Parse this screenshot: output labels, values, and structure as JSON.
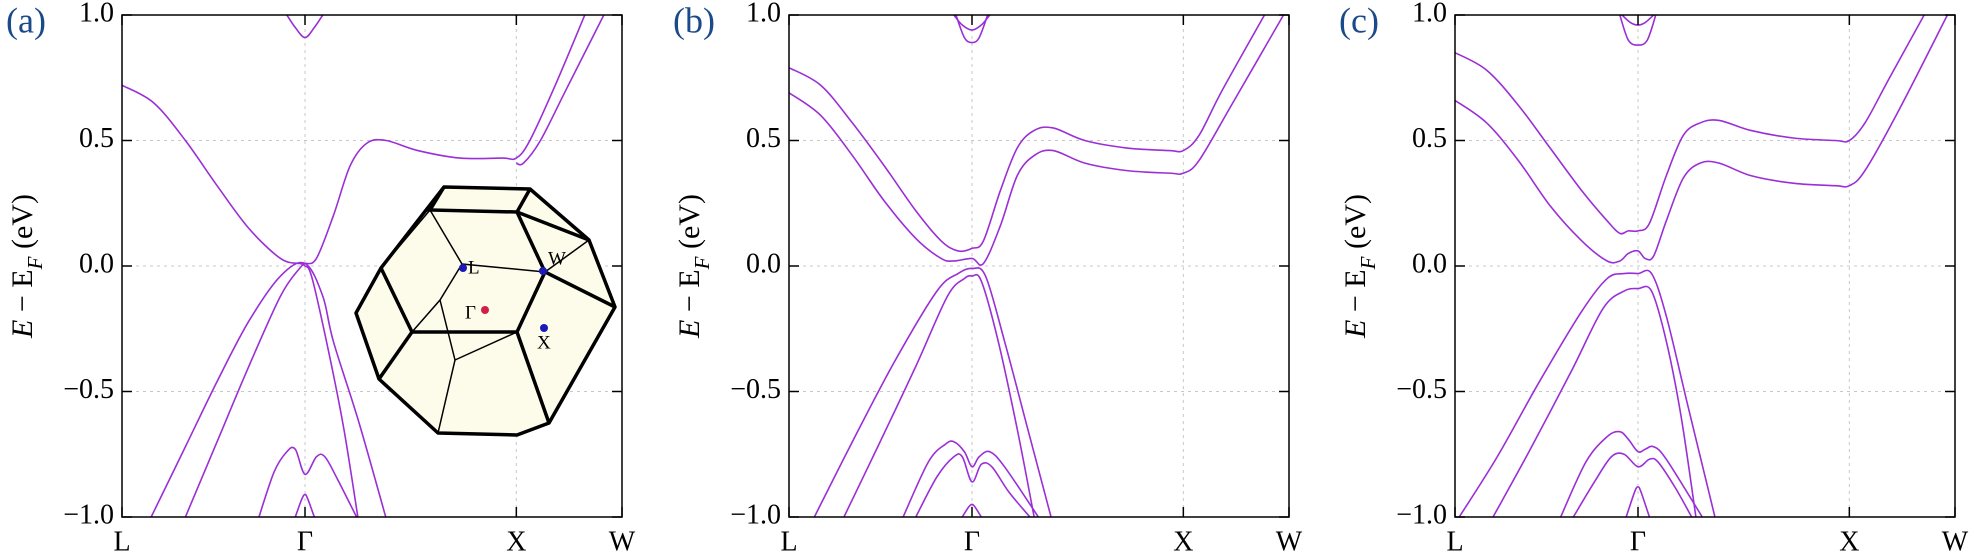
{
  "chart_data": [
    {
      "type": "line",
      "title": "(a)",
      "ylabel": [
        "E",
        " − E",
        "F",
        " (eV)"
      ],
      "xlim": [
        0,
        2.366
      ],
      "ylim": [
        -1,
        1
      ],
      "xticks": [
        {
          "value": 0,
          "label": "L"
        },
        {
          "value": 0.866,
          "label": "Γ"
        },
        {
          "value": 1.866,
          "label": "X"
        },
        {
          "value": 2.366,
          "label": "W"
        }
      ],
      "yticks": [
        {
          "value": -1,
          "label": "−1.0"
        },
        {
          "value": -0.5,
          "label": "−0.5"
        },
        {
          "value": 0,
          "label": "0.0"
        },
        {
          "value": 0.5,
          "label": "0.5"
        },
        {
          "value": 1,
          "label": "1.0"
        }
      ],
      "grid": true,
      "color": "#9a2fd6",
      "annotations": [
        "L",
        "W",
        "Γ",
        "X"
      ],
      "series": [
        {
          "x": [
            0,
            0.15,
            0.3,
            0.45,
            0.6,
            0.75,
            0.84,
            0.866,
            0.92,
            1.0,
            1.08,
            1.16,
            1.25,
            1.4,
            1.6,
            1.8,
            1.866,
            1.93,
            2.05,
            2.19
          ],
          "values": [
            0.72,
            0.65,
            0.5,
            0.32,
            0.15,
            0.03,
            0.01,
            0.01,
            0.03,
            0.2,
            0.4,
            0.49,
            0.5,
            0.46,
            0.43,
            0.43,
            0.43,
            0.5,
            0.72,
            1.0
          ]
        },
        {
          "x": [
            1.866,
            1.9,
            1.98,
            2.1,
            2.28
          ],
          "values": [
            0.41,
            0.41,
            0.5,
            0.7,
            1.0
          ]
        },
        {
          "x": [
            0.138,
            0.3,
            0.45,
            0.6,
            0.75,
            0.866,
            0.95,
            1.0,
            1.12,
            1.248
          ],
          "values": [
            -1.0,
            -0.72,
            -0.46,
            -0.22,
            -0.04,
            0.01,
            -0.12,
            -0.3,
            -0.62,
            -1.0
          ]
        },
        {
          "x": [
            0.3,
            0.45,
            0.6,
            0.75,
            0.84,
            0.866,
            0.9,
            0.98,
            1.05,
            1.116
          ],
          "values": [
            -1.0,
            -0.7,
            -0.4,
            -0.12,
            -0.01,
            0.0,
            -0.05,
            -0.35,
            -0.65,
            -1.0
          ]
        },
        {
          "x": [
            0.648,
            0.72,
            0.78,
            0.82,
            0.866,
            0.92,
            0.96,
            1.02,
            1.11
          ],
          "values": [
            -1.0,
            -0.82,
            -0.74,
            -0.73,
            -0.83,
            -0.76,
            -0.76,
            -0.85,
            -1.0
          ]
        },
        {
          "x": [
            0.82,
            0.85,
            0.866,
            0.88,
            0.91
          ],
          "values": [
            -1.0,
            -0.93,
            -0.91,
            -0.93,
            -1.0
          ]
        },
        {
          "x": [
            0.78,
            0.82,
            0.866,
            0.91,
            0.95
          ],
          "values": [
            1.0,
            0.95,
            0.91,
            0.95,
            1.0
          ]
        }
      ]
    },
    {
      "type": "line",
      "title": "(b)",
      "ylabel": [
        "E",
        " − E",
        "F",
        " (eV)"
      ],
      "xlim": [
        0,
        2.366
      ],
      "ylim": [
        -1,
        1
      ],
      "xticks": [
        {
          "value": 0,
          "label": "L"
        },
        {
          "value": 0.866,
          "label": "Γ"
        },
        {
          "value": 1.866,
          "label": "X"
        },
        {
          "value": 2.366,
          "label": "W"
        }
      ],
      "yticks": [
        {
          "value": -1,
          "label": "−1.0"
        },
        {
          "value": -0.5,
          "label": "−0.5"
        },
        {
          "value": 0,
          "label": "0.0"
        },
        {
          "value": 0.5,
          "label": "0.5"
        },
        {
          "value": 1,
          "label": "1.0"
        }
      ],
      "grid": true,
      "color": "#9a2fd6",
      "series": [
        {
          "x": [
            0,
            0.15,
            0.3,
            0.45,
            0.6,
            0.72,
            0.8,
            0.866,
            0.92,
            1.0,
            1.08,
            1.16,
            1.25,
            1.4,
            1.6,
            1.8,
            1.866,
            1.94,
            2.05,
            2.25
          ],
          "values": [
            0.79,
            0.72,
            0.57,
            0.4,
            0.22,
            0.1,
            0.06,
            0.07,
            0.1,
            0.3,
            0.47,
            0.54,
            0.55,
            0.5,
            0.47,
            0.46,
            0.46,
            0.52,
            0.7,
            1.0
          ]
        },
        {
          "x": [
            0,
            0.15,
            0.3,
            0.45,
            0.6,
            0.72,
            0.78,
            0.866,
            0.92,
            1.0,
            1.08,
            1.16,
            1.25,
            1.4,
            1.6,
            1.8,
            1.866,
            1.94,
            2.1,
            2.34
          ],
          "values": [
            0.69,
            0.6,
            0.44,
            0.26,
            0.11,
            0.03,
            0.02,
            0.03,
            0.01,
            0.16,
            0.36,
            0.44,
            0.46,
            0.41,
            0.38,
            0.37,
            0.37,
            0.42,
            0.65,
            1.0
          ]
        },
        {
          "x": [
            0.12,
            0.3,
            0.5,
            0.7,
            0.8,
            0.866,
            0.93,
            1.02,
            1.13,
            1.24
          ],
          "values": [
            -1.0,
            -0.7,
            -0.38,
            -0.1,
            -0.03,
            -0.01,
            -0.04,
            -0.3,
            -0.65,
            -1.0
          ]
        },
        {
          "x": [
            0.26,
            0.42,
            0.6,
            0.75,
            0.83,
            0.866,
            0.91,
            0.99,
            1.08,
            1.16
          ],
          "values": [
            -1.0,
            -0.72,
            -0.4,
            -0.12,
            -0.05,
            -0.04,
            -0.06,
            -0.3,
            -0.65,
            -1.0
          ]
        },
        {
          "x": [
            0.54,
            0.66,
            0.74,
            0.78,
            0.83,
            0.866,
            0.9,
            0.95,
            1.02,
            1.18
          ],
          "values": [
            -1.0,
            -0.78,
            -0.71,
            -0.7,
            -0.74,
            -0.8,
            -0.76,
            -0.74,
            -0.8,
            -1.0
          ]
        },
        {
          "x": [
            0.6,
            0.7,
            0.78,
            0.82,
            0.866,
            0.91,
            0.96,
            1.04,
            1.14
          ],
          "values": [
            -1.0,
            -0.84,
            -0.76,
            -0.76,
            -0.86,
            -0.79,
            -0.8,
            -0.9,
            -1.0
          ]
        },
        {
          "x": [
            0.82,
            0.85,
            0.866,
            0.88,
            0.91
          ],
          "values": [
            -1.0,
            -0.96,
            -0.95,
            -0.96,
            -1.0
          ]
        },
        {
          "x": [
            0.78,
            0.82,
            0.866,
            0.91,
            0.95
          ],
          "values": [
            1.0,
            0.96,
            0.94,
            0.96,
            1.0
          ]
        },
        {
          "x": [
            0.79,
            0.83,
            0.866,
            0.9,
            0.94
          ],
          "values": [
            1.0,
            0.91,
            0.89,
            0.91,
            1.0
          ]
        }
      ]
    },
    {
      "type": "line",
      "title": "(c)",
      "ylabel": [
        "E",
        " − E",
        "F",
        " (eV)"
      ],
      "xlim": [
        0,
        2.366
      ],
      "ylim": [
        -1,
        1
      ],
      "xticks": [
        {
          "value": 0,
          "label": "L"
        },
        {
          "value": 0.866,
          "label": "Γ"
        },
        {
          "value": 1.866,
          "label": "X"
        },
        {
          "value": 2.366,
          "label": "W"
        }
      ],
      "yticks": [
        {
          "value": -1,
          "label": "−1.0"
        },
        {
          "value": -0.5,
          "label": "−0.5"
        },
        {
          "value": 0,
          "label": "0.0"
        },
        {
          "value": 0.5,
          "label": "0.5"
        },
        {
          "value": 1,
          "label": "1.0"
        }
      ],
      "grid": true,
      "color": "#9a2fd6",
      "series": [
        {
          "x": [
            0,
            0.15,
            0.3,
            0.45,
            0.6,
            0.72,
            0.78,
            0.82,
            0.866,
            0.92,
            1.0,
            1.08,
            1.16,
            1.25,
            1.4,
            1.6,
            1.8,
            1.866,
            1.94,
            2.05,
            2.22
          ],
          "values": [
            0.85,
            0.78,
            0.64,
            0.47,
            0.3,
            0.18,
            0.13,
            0.14,
            0.14,
            0.17,
            0.36,
            0.52,
            0.57,
            0.58,
            0.54,
            0.51,
            0.5,
            0.5,
            0.57,
            0.74,
            1.0
          ]
        },
        {
          "x": [
            0,
            0.15,
            0.3,
            0.45,
            0.6,
            0.72,
            0.78,
            0.82,
            0.866,
            0.9,
            0.94,
            1.0,
            1.08,
            1.16,
            1.25,
            1.4,
            1.6,
            1.8,
            1.866,
            1.94,
            2.1,
            2.33
          ],
          "values": [
            0.66,
            0.57,
            0.42,
            0.24,
            0.1,
            0.02,
            0.02,
            0.05,
            0.06,
            0.03,
            0.04,
            0.18,
            0.35,
            0.41,
            0.41,
            0.36,
            0.33,
            0.32,
            0.32,
            0.38,
            0.62,
            1.0
          ]
        },
        {
          "x": [
            0.02,
            0.2,
            0.4,
            0.6,
            0.72,
            0.8,
            0.866,
            0.93,
            1.0,
            1.1,
            1.23
          ],
          "values": [
            -1.0,
            -0.76,
            -0.46,
            -0.18,
            -0.05,
            -0.03,
            -0.03,
            -0.03,
            -0.2,
            -0.55,
            -1.0
          ]
        },
        {
          "x": [
            0.18,
            0.35,
            0.55,
            0.7,
            0.8,
            0.866,
            0.93,
            1.0,
            1.07,
            1.14
          ],
          "values": [
            -1.0,
            -0.74,
            -0.42,
            -0.17,
            -0.1,
            -0.09,
            -0.1,
            -0.3,
            -0.6,
            -1.0
          ]
        },
        {
          "x": [
            0.5,
            0.62,
            0.72,
            0.78,
            0.82,
            0.866,
            0.9,
            0.94,
            1.0,
            1.17
          ],
          "values": [
            -1.0,
            -0.78,
            -0.68,
            -0.66,
            -0.69,
            -0.74,
            -0.73,
            -0.72,
            -0.77,
            -1.0
          ]
        },
        {
          "x": [
            0.56,
            0.66,
            0.74,
            0.8,
            0.866,
            0.92,
            0.96,
            1.04,
            1.12
          ],
          "values": [
            -1.0,
            -0.86,
            -0.76,
            -0.75,
            -0.8,
            -0.77,
            -0.78,
            -0.88,
            -1.0
          ]
        },
        {
          "x": [
            0.81,
            0.85,
            0.866,
            0.88,
            0.92
          ],
          "values": [
            -1.0,
            -0.9,
            -0.88,
            -0.9,
            -1.0
          ]
        },
        {
          "x": [
            0.79,
            0.83,
            0.866,
            0.9,
            0.94
          ],
          "values": [
            1.0,
            0.97,
            0.96,
            0.97,
            1.0
          ]
        },
        {
          "x": [
            0.78,
            0.82,
            0.866,
            0.91,
            0.95
          ],
          "values": [
            1.0,
            0.9,
            0.88,
            0.9,
            1.0
          ]
        }
      ]
    }
  ]
}
